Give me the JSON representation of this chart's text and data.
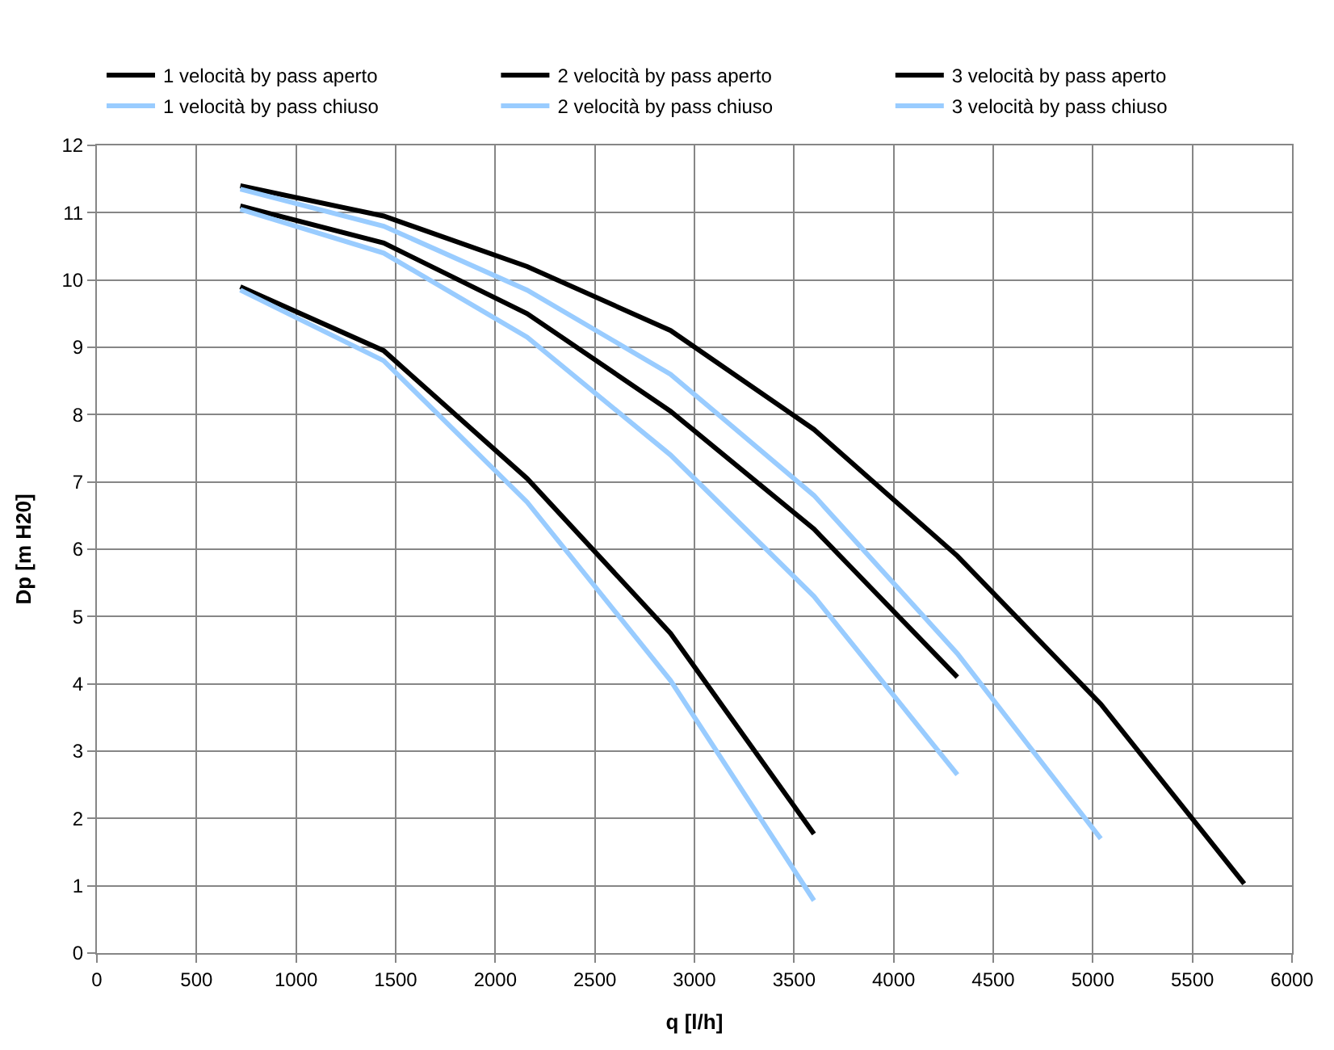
{
  "chart_data": {
    "type": "line",
    "xlabel": "q [l/h]",
    "ylabel": "Dp [m H20]",
    "xlim": [
      0,
      6000
    ],
    "xticks": [
      0,
      500,
      1000,
      1500,
      2000,
      2500,
      3000,
      3500,
      4000,
      4500,
      5000,
      5500,
      6000
    ],
    "ylim": [
      0,
      12
    ],
    "yticks": [
      0,
      1,
      2,
      3,
      4,
      5,
      6,
      7,
      8,
      9,
      10,
      11,
      12
    ],
    "grid": true,
    "legend": "top",
    "marker": "none",
    "line_style": "solid",
    "series": [
      {
        "name": "1 velocità by pass aperto",
        "color": "#000000",
        "x": [
          720,
          1440,
          2160,
          2880,
          3600
        ],
        "values": [
          9.9,
          8.95,
          7.05,
          4.75,
          1.77
        ]
      },
      {
        "name": "2 velocità by pass aperto",
        "color": "#000000",
        "x": [
          720,
          1440,
          2160,
          2880,
          3600,
          4320
        ],
        "values": [
          11.1,
          10.55,
          9.5,
          8.05,
          6.3,
          4.1
        ]
      },
      {
        "name": "3 velocità by pass aperto",
        "color": "#000000",
        "x": [
          720,
          1440,
          2160,
          2880,
          3600,
          4320,
          5040,
          5760
        ],
        "values": [
          11.4,
          10.95,
          10.2,
          9.25,
          7.78,
          5.9,
          3.7,
          1.03
        ]
      },
      {
        "name": "1 velocità by pass chiuso",
        "color": "#99ccff",
        "x": [
          720,
          1440,
          2160,
          2880,
          3600
        ],
        "values": [
          9.85,
          8.8,
          6.7,
          4.05,
          0.78
        ]
      },
      {
        "name": "2 velocità by pass chiuso",
        "color": "#99ccff",
        "x": [
          720,
          1440,
          2160,
          2880,
          3600,
          4320
        ],
        "values": [
          11.05,
          10.4,
          9.15,
          7.4,
          5.3,
          2.65
        ]
      },
      {
        "name": "3 velocità by pass chiuso",
        "color": "#99ccff",
        "x": [
          720,
          1440,
          2160,
          2880,
          3600,
          4320,
          5040
        ],
        "values": [
          11.35,
          10.8,
          9.85,
          8.6,
          6.8,
          4.45,
          1.7
        ]
      }
    ]
  }
}
